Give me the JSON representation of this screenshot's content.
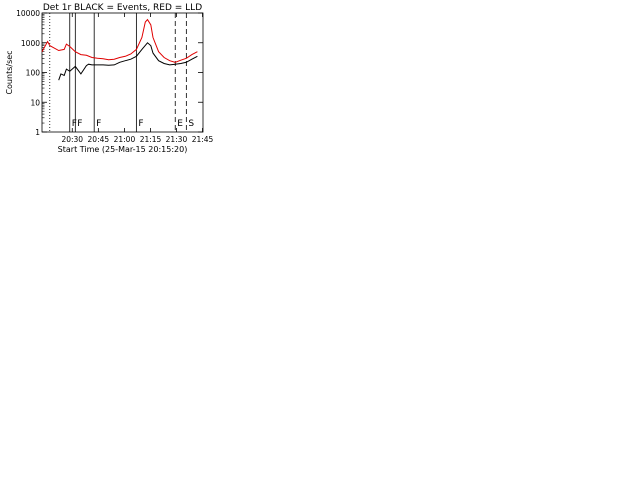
{
  "colors": {
    "events": "#000000",
    "lld": "#e00000",
    "axis": "#000000"
  },
  "shared_x": {
    "tick_labels": [
      "20:30",
      "20:45",
      "21:00",
      "21:15",
      "21:30",
      "21:45"
    ],
    "xlabel": "Start Time (25-Mar-15 20:15:20)"
  },
  "log_ticks": [
    "1",
    "10",
    "100",
    "1000",
    "10000"
  ],
  "chart_data": [
    {
      "type": "line",
      "title": "Det 1r BLACK = Events, RED = LLD",
      "ylabel": "Counts/sec",
      "ylim": [
        1,
        10000
      ],
      "yscale": "log",
      "event_markers": [],
      "series": [
        {
          "values": [
            [
              20.35,
              55
            ],
            [
              20.37,
              90
            ],
            [
              20.4,
              80
            ],
            [
              20.42,
              130
            ],
            [
              20.45,
              110
            ],
            [
              20.5,
              160
            ],
            [
              20.55,
              90
            ],
            [
              20.6,
              170
            ],
            [
              20.62,
              190
            ],
            [
              20.65,
              180
            ],
            [
              20.7,
              180
            ],
            [
              20.75,
              180
            ],
            [
              20.8,
              175
            ],
            [
              20.85,
              180
            ],
            [
              20.9,
              220
            ],
            [
              20.95,
              250
            ],
            [
              21.0,
              280
            ],
            [
              21.05,
              350
            ],
            [
              21.1,
              600
            ],
            [
              21.15,
              1000
            ],
            [
              21.18,
              800
            ],
            [
              21.2,
              450
            ],
            [
              21.25,
              250
            ],
            [
              21.3,
              200
            ],
            [
              21.35,
              180
            ],
            [
              21.4,
              190
            ],
            [
              21.45,
              200
            ],
            [
              21.5,
              220
            ],
            [
              21.55,
              280
            ],
            [
              21.6,
              350
            ]
          ]
        },
        {
          "values": [
            [
              20.2,
              500
            ],
            [
              20.25,
              1100
            ],
            [
              20.27,
              800
            ],
            [
              20.3,
              700
            ],
            [
              20.35,
              550
            ],
            [
              20.4,
              600
            ],
            [
              20.42,
              900
            ],
            [
              20.45,
              750
            ],
            [
              20.5,
              500
            ],
            [
              20.55,
              400
            ],
            [
              20.6,
              380
            ],
            [
              20.65,
              320
            ],
            [
              20.7,
              300
            ],
            [
              20.75,
              290
            ],
            [
              20.8,
              270
            ],
            [
              20.85,
              280
            ],
            [
              20.9,
              320
            ],
            [
              20.95,
              350
            ],
            [
              21.0,
              420
            ],
            [
              21.05,
              600
            ],
            [
              21.1,
              1500
            ],
            [
              21.13,
              5000
            ],
            [
              21.15,
              6000
            ],
            [
              21.18,
              4000
            ],
            [
              21.2,
              1500
            ],
            [
              21.25,
              500
            ],
            [
              21.3,
              320
            ],
            [
              21.35,
              250
            ],
            [
              21.4,
              220
            ],
            [
              21.45,
              260
            ],
            [
              21.5,
              300
            ],
            [
              21.55,
              400
            ],
            [
              21.6,
              500
            ]
          ]
        }
      ],
      "markers": [
        {
          "x": 20.45,
          "letter": "F"
        },
        {
          "x": 20.5,
          "letter": "F"
        },
        {
          "x": 20.67,
          "letter": "F"
        },
        {
          "x": 21.05,
          "letter": "F"
        },
        {
          "x": 21.4,
          "letter": "E"
        },
        {
          "x": 21.5,
          "letter": "S"
        }
      ],
      "vertical_lines": [
        {
          "x": 20.27,
          "style": "dotted"
        },
        {
          "x": 20.45,
          "style": "solid"
        },
        {
          "x": 20.5,
          "style": "solid"
        },
        {
          "x": 20.67,
          "style": "solid"
        },
        {
          "x": 21.05,
          "style": "solid"
        },
        {
          "x": 21.4,
          "style": "dashed"
        },
        {
          "x": 21.5,
          "style": "dashed"
        }
      ]
    }
  ]
}
